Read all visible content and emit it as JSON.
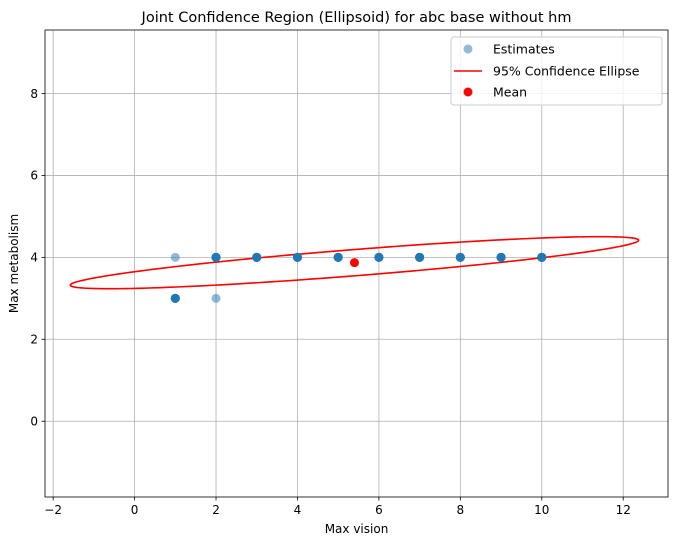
{
  "chart_data": {
    "type": "scatter",
    "title": "Joint Confidence Region (Ellipsoid) for abc base without hm",
    "xlabel": "Max vision",
    "ylabel": "Max metabolism",
    "xlim": [
      -2.2,
      13.1
    ],
    "ylim": [
      -1.85,
      9.55
    ],
    "xticks": [
      -2,
      0,
      2,
      4,
      6,
      8,
      10,
      12
    ],
    "yticks": [
      0,
      2,
      4,
      6,
      8
    ],
    "grid": true,
    "legend": {
      "position": "top-right",
      "entries": [
        {
          "label": "Estimates",
          "marker": "circle",
          "color": "#1f77b4"
        },
        {
          "label": "95% Confidence Ellipse",
          "marker": "line",
          "color": "#ff0000"
        },
        {
          "label": "Mean",
          "marker": "circle",
          "color": "#ff0000"
        }
      ]
    },
    "series": [
      {
        "name": "Estimates",
        "kind": "scatter",
        "color": "#1f77b4",
        "points": [
          {
            "x": 1,
            "y": 4,
            "count": 1
          },
          {
            "x": 1,
            "y": 3,
            "count": 8
          },
          {
            "x": 2,
            "y": 4,
            "count": 8
          },
          {
            "x": 2,
            "y": 3,
            "count": 1
          },
          {
            "x": 3,
            "y": 4,
            "count": 8
          },
          {
            "x": 4,
            "y": 4,
            "count": 8
          },
          {
            "x": 5,
            "y": 4,
            "count": 8
          },
          {
            "x": 6,
            "y": 4,
            "count": 6
          },
          {
            "x": 7,
            "y": 4,
            "count": 8
          },
          {
            "x": 8,
            "y": 4,
            "count": 6
          },
          {
            "x": 9,
            "y": 4,
            "count": 8
          },
          {
            "x": 10,
            "y": 4,
            "count": 8
          }
        ]
      },
      {
        "name": "95% Confidence Ellipse",
        "kind": "ellipse",
        "color": "#ff0000",
        "center": [
          5.4,
          3.87
        ],
        "semi_axis_major": 7.0,
        "semi_axis_minor": 0.32,
        "angle_deg": 4.5
      },
      {
        "name": "Mean",
        "kind": "point",
        "color": "#ff0000",
        "x": 5.4,
        "y": 3.87
      }
    ]
  }
}
